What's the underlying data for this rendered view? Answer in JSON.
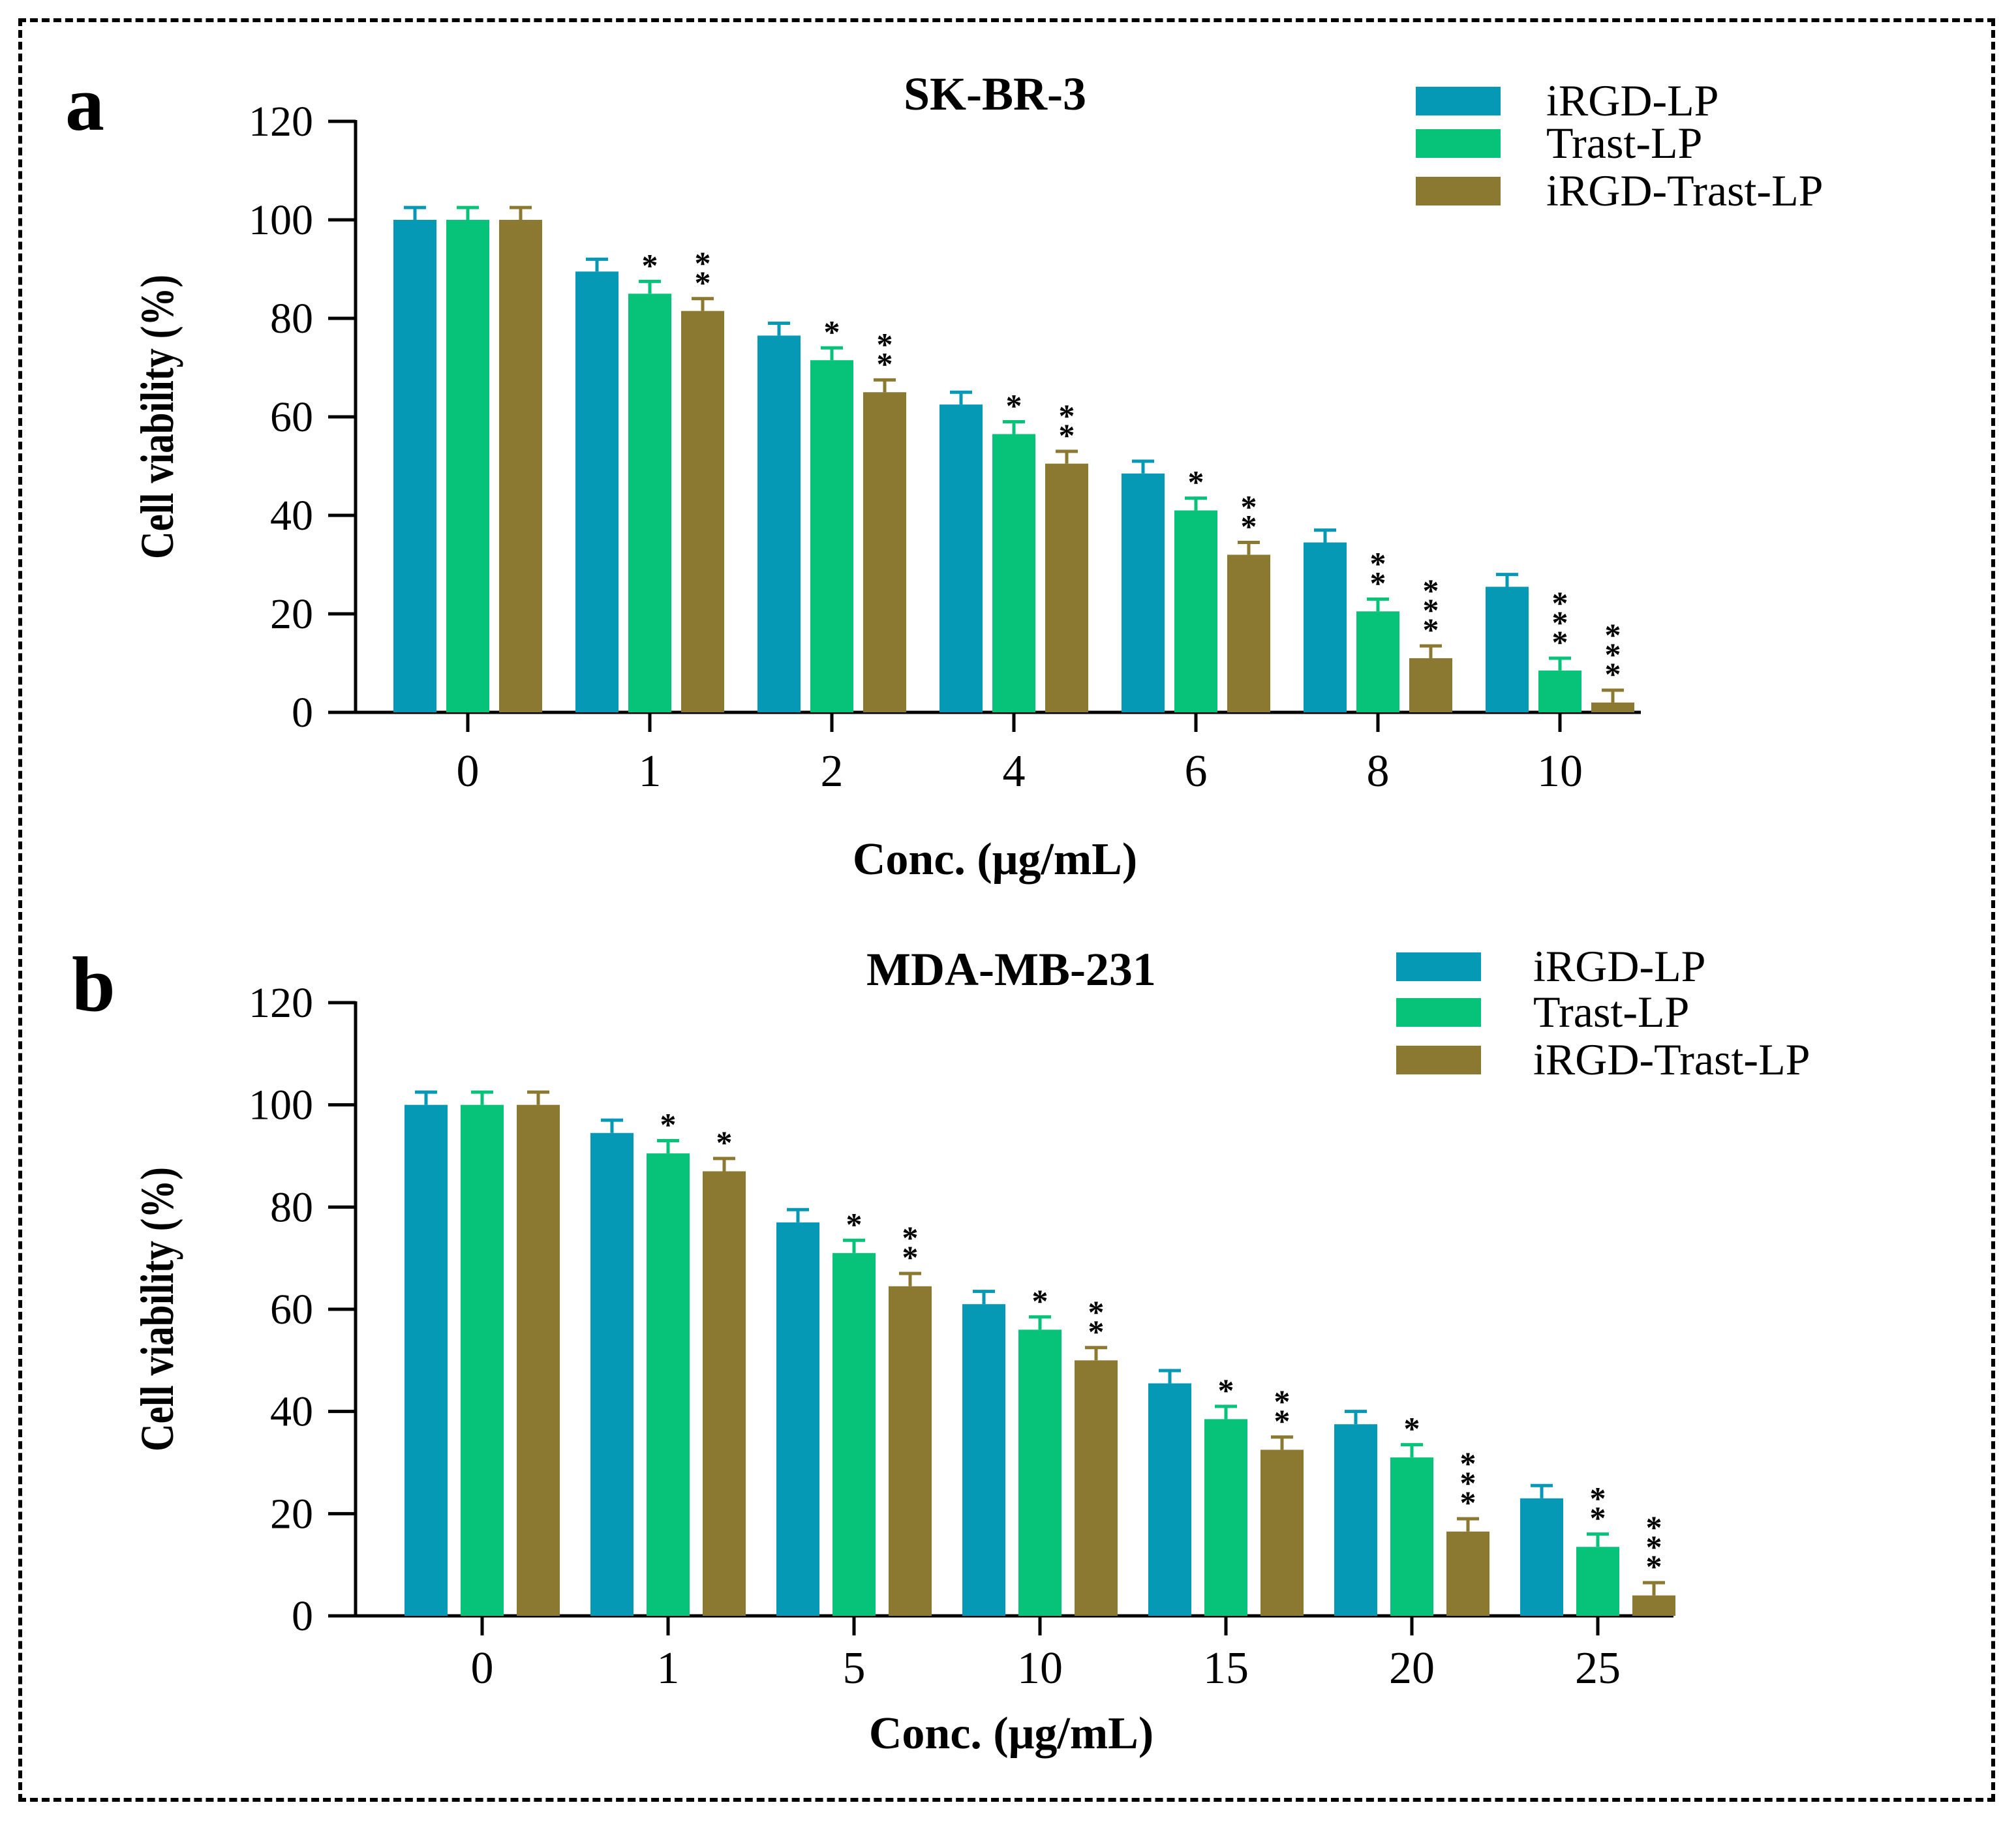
{
  "legend_labels": [
    "iRGD-LP",
    "Trast-LP",
    "iRGD-Trast-LP"
  ],
  "colors": {
    "iRGD-LP": "#0599b6",
    "Trast-LP": "#07c37a",
    "iRGD-Trast-LP": "#8b7932"
  },
  "chart_data": [
    {
      "panel": "a",
      "type": "bar",
      "title": "SK-BR-3",
      "xlabel": "Conc. (μg/mL)",
      "ylabel": "Cell viability (%)",
      "ylim": [
        0,
        120
      ],
      "yticks": [
        "0",
        "20",
        "40",
        "60",
        "80",
        "100",
        "120"
      ],
      "categories": [
        "0",
        "1",
        "2",
        "4",
        "6",
        "8",
        "10"
      ],
      "legend_position": "top-right",
      "series": [
        {
          "name": "iRGD-LP",
          "values": [
            100,
            89.5,
            76.5,
            62.5,
            48.5,
            34.5,
            25.5
          ],
          "errors": [
            2.5,
            2.5,
            2.5,
            2.5,
            2.5,
            2.5,
            2.5
          ],
          "stars": [
            "",
            "",
            "",
            "",
            "",
            "",
            ""
          ]
        },
        {
          "name": "Trast-LP",
          "values": [
            100,
            85,
            71.5,
            56.5,
            41,
            20.5,
            8.5
          ],
          "errors": [
            2.5,
            2.5,
            2.5,
            2.5,
            2.5,
            2.5,
            2.5
          ],
          "stars": [
            "",
            "*",
            "*",
            "*",
            "*",
            "**",
            "***"
          ]
        },
        {
          "name": "iRGD-Trast-LP",
          "values": [
            100,
            81.5,
            65,
            50.5,
            32,
            11,
            2
          ],
          "errors": [
            2.5,
            2.5,
            2.5,
            2.5,
            2.5,
            2.5,
            2.5
          ],
          "stars": [
            "",
            "**",
            "**",
            "**",
            "**",
            "***",
            "***"
          ]
        }
      ]
    },
    {
      "panel": "b",
      "type": "bar",
      "title": "MDA-MB-231",
      "xlabel": "Conc. (μg/mL)",
      "ylabel": "Cell viability (%)",
      "ylim": [
        0,
        120
      ],
      "yticks": [
        "0",
        "20",
        "40",
        "60",
        "80",
        "100",
        "120"
      ],
      "categories": [
        "0",
        "1",
        "5",
        "10",
        "15",
        "20",
        "25"
      ],
      "legend_position": "top-right",
      "series": [
        {
          "name": "iRGD-LP",
          "values": [
            100,
            94.5,
            77,
            61,
            45.5,
            37.5,
            23
          ],
          "errors": [
            2.5,
            2.5,
            2.5,
            2.5,
            2.5,
            2.5,
            2.5
          ],
          "stars": [
            "",
            "",
            "",
            "",
            "",
            "",
            ""
          ]
        },
        {
          "name": "Trast-LP",
          "values": [
            100,
            90.5,
            71,
            56,
            38.5,
            31,
            13.5
          ],
          "errors": [
            2.5,
            2.5,
            2.5,
            2.5,
            2.5,
            2.5,
            2.5
          ],
          "stars": [
            "",
            "*",
            "*",
            "*",
            "*",
            "*",
            "**"
          ]
        },
        {
          "name": "iRGD-Trast-LP",
          "values": [
            100,
            87,
            64.5,
            50,
            32.5,
            16.5,
            4
          ],
          "errors": [
            2.5,
            2.5,
            2.5,
            2.5,
            2.5,
            2.5,
            2.5
          ],
          "stars": [
            "",
            "*",
            "**",
            "**",
            "**",
            "***",
            "***"
          ]
        }
      ]
    }
  ]
}
